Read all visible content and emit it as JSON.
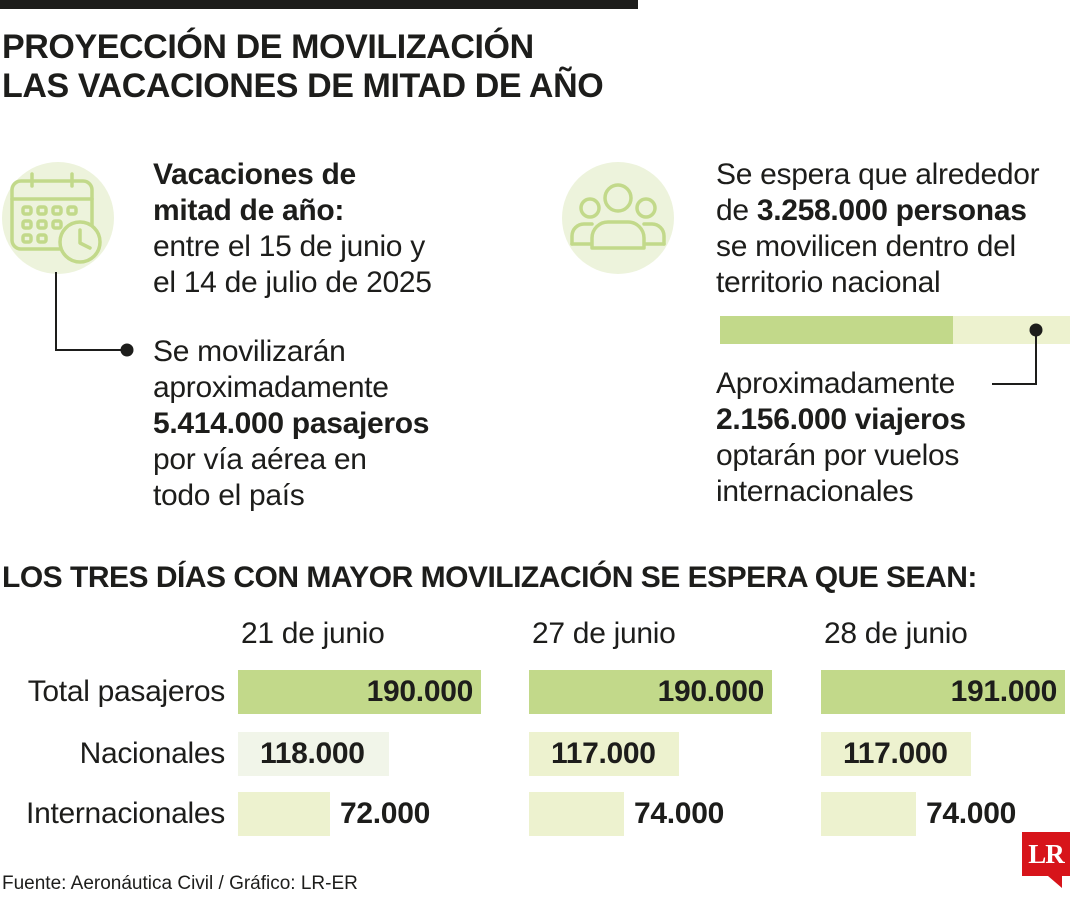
{
  "title_line1": "PROYECCIÓN DE MOVILIZACIÓN",
  "title_line2": "LAS VACACIONES DE MITAD DE AÑO",
  "vacations": {
    "heading_line1": "Vacaciones de",
    "heading_line2": "mitad de año:",
    "period_line1": "entre el 15 de junio y",
    "period_line2": "el 14 de julio de 2025"
  },
  "air": {
    "line1": "Se movilizarán",
    "line2": "aproximadamente",
    "value": "5.414.000 pasajeros",
    "line4": "por vía aérea en",
    "line5": "todo el país"
  },
  "expected": {
    "line1": "Se espera que alrededor",
    "prefix": "de ",
    "value": "3.258.000 personas",
    "line3": "se movilicen dentro del",
    "line4": "territorio nacional"
  },
  "international": {
    "line1": "Aproximadamente",
    "value": "2.156.000 viajeros",
    "line3": "optarán por vuelos",
    "line4": "internacionales"
  },
  "share_bar": {
    "domestic": 3258000,
    "international": 2156000,
    "total": 5414000
  },
  "subtitle": "LOS TRES DÍAS CON MAYOR MOVILIZACIÓN SE ESPERA QUE SEAN:",
  "chart_data": {
    "type": "bar",
    "categories": [
      "21 de junio",
      "27 de junio",
      "28 de junio"
    ],
    "series": [
      {
        "name": "Total pasajeros",
        "values": [
          190000,
          190000,
          191000
        ],
        "labels": [
          "190.000",
          "190.000",
          "191.000"
        ]
      },
      {
        "name": "Nacionales",
        "values": [
          118000,
          117000,
          117000
        ],
        "labels": [
          "118.000",
          "117.000",
          "117.000"
        ]
      },
      {
        "name": "Internacionales",
        "values": [
          72000,
          74000,
          74000
        ],
        "labels": [
          "72.000",
          "74.000",
          "74.000"
        ]
      }
    ]
  },
  "source": "Fuente: Aeronáutica Civil / Gráfico: LR-ER",
  "logo": "LR",
  "colors": {
    "total_bar": "#c2d98a",
    "national_bar": "#edf2cf",
    "international_bar": "#edf2cf",
    "light_green": "#edf2cf",
    "icon_green": "#c2d98a",
    "icon_bg": "#edf3dc",
    "logo_red": "#d7141a"
  },
  "icons": [
    "calendar-clock-icon",
    "people-group-icon"
  ]
}
